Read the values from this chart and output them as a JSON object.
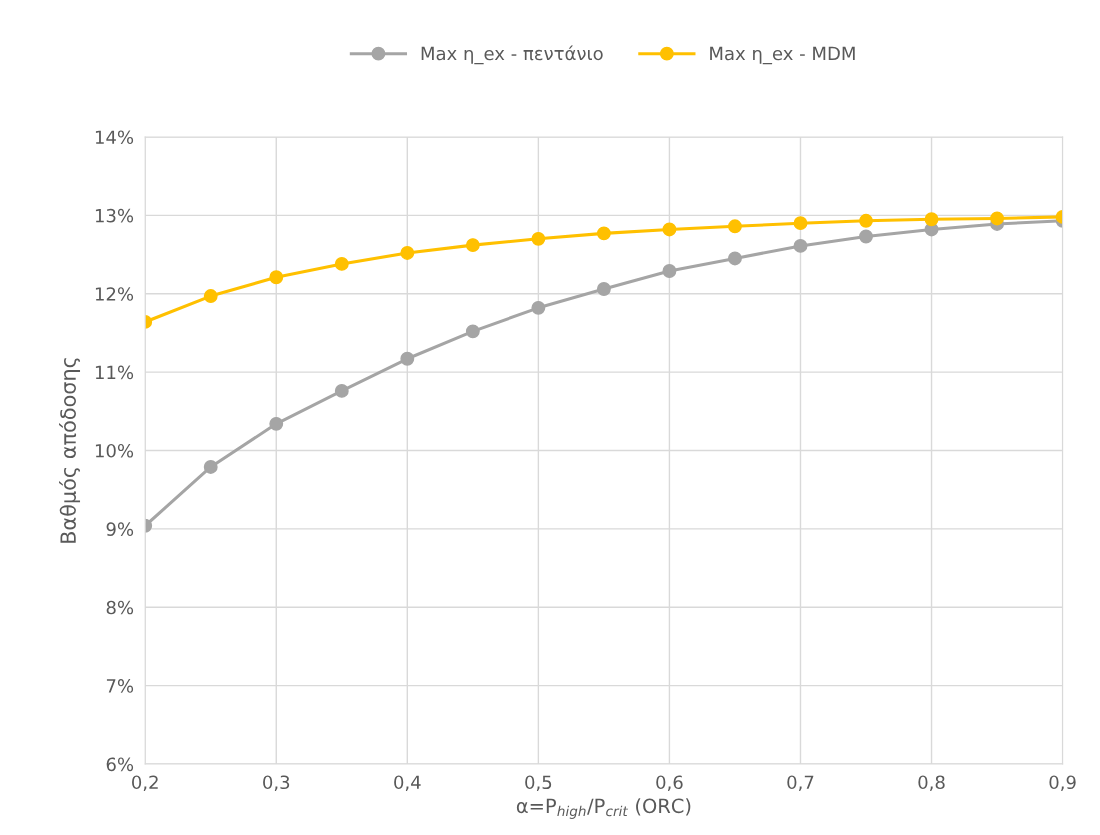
{
  "chart_data": {
    "type": "line",
    "xlabel": "α=P$_{high}$/P$_{crit}$ (ORC)",
    "ylabel": "Βαθμός απόδοσης",
    "x": [
      0.2,
      0.25,
      0.3,
      0.35,
      0.4,
      0.45,
      0.5,
      0.55,
      0.6,
      0.65,
      0.7,
      0.75,
      0.8,
      0.85,
      0.9
    ],
    "series": [
      {
        "name": "Max η_ex - πεντάνιο",
        "color": "#a5a5a5",
        "values": [
          9.04,
          9.79,
          10.34,
          10.76,
          11.17,
          11.52,
          11.82,
          12.06,
          12.29,
          12.45,
          12.61,
          12.73,
          12.82,
          12.89,
          12.93
        ]
      },
      {
        "name": "Max η_ex - MDM",
        "color": "#ffc000",
        "values": [
          11.64,
          11.97,
          12.21,
          12.38,
          12.52,
          12.62,
          12.7,
          12.77,
          12.82,
          12.86,
          12.9,
          12.93,
          12.95,
          12.96,
          12.98
        ]
      }
    ],
    "xlim": [
      0.2,
      0.9
    ],
    "xticks": [
      {
        "value": 0.2,
        "label": "0,2"
      },
      {
        "value": 0.3,
        "label": "0,3"
      },
      {
        "value": 0.4,
        "label": "0,4"
      },
      {
        "value": 0.5,
        "label": "0,5"
      },
      {
        "value": 0.6,
        "label": "0,6"
      },
      {
        "value": 0.7,
        "label": "0,7"
      },
      {
        "value": 0.8,
        "label": "0,8"
      },
      {
        "value": 0.9,
        "label": "0,9"
      }
    ],
    "ylim": [
      6,
      14
    ],
    "yticks": [
      {
        "value": 6,
        "label": "6%"
      },
      {
        "value": 7,
        "label": "7%"
      },
      {
        "value": 8,
        "label": "8%"
      },
      {
        "value": 9,
        "label": "9%"
      },
      {
        "value": 10,
        "label": "10%"
      },
      {
        "value": 11,
        "label": "11%"
      },
      {
        "value": 12,
        "label": "12%"
      },
      {
        "value": 13,
        "label": "13%"
      },
      {
        "value": 14,
        "label": "14%"
      }
    ],
    "grid": true,
    "legend": "top",
    "marker": "circle",
    "line_style": "solid"
  }
}
